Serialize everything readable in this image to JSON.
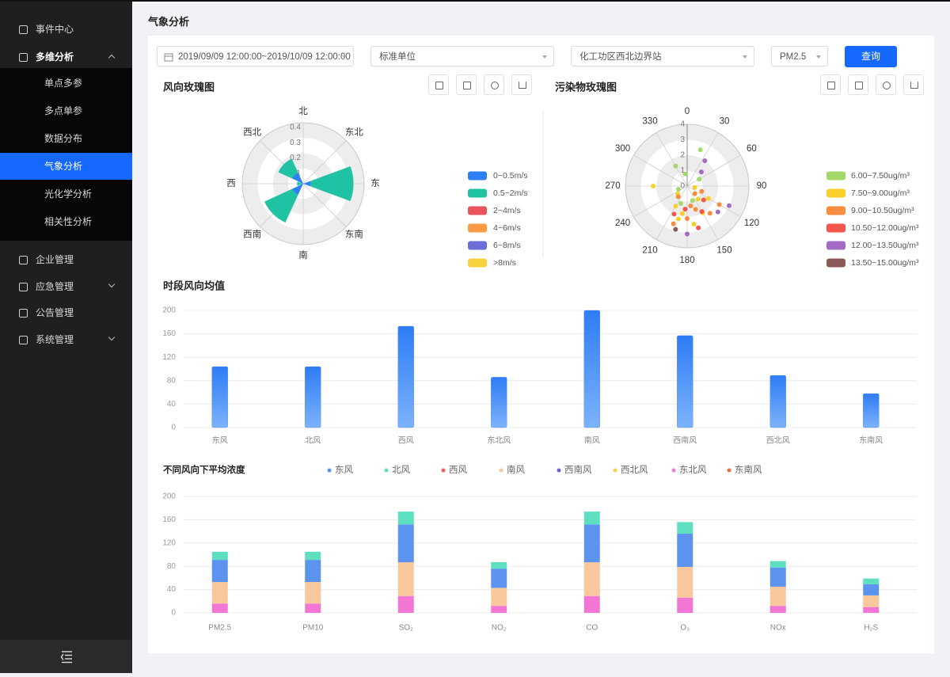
{
  "sidebar": {
    "items": [
      {
        "label": "事件中心"
      },
      {
        "label": "多维分析",
        "children": [
          "单点多参",
          "多点单参",
          "数据分布",
          "气象分析",
          "光化学分析",
          "相关性分析"
        ]
      },
      {
        "label": "企业管理"
      },
      {
        "label": "应急管理"
      },
      {
        "label": "公告管理"
      },
      {
        "label": "系统管理"
      }
    ]
  },
  "header": {
    "title": "气象分析"
  },
  "filters": {
    "date_range": "2019/09/09 12:00:00~2019/10/09 12:00:00",
    "unit": "标准单位",
    "station": "化工功区西北边界站",
    "pollutant": "PM2.5",
    "query_button": "查询"
  },
  "wind_rose": {
    "type": "polar-bar",
    "title": "风向玫瑰图",
    "directions": [
      "北",
      "东北",
      "东",
      "东南",
      "南",
      "西南",
      "西",
      "西北"
    ],
    "rlim": [
      0,
      0.4
    ],
    "rticks": [
      0.1,
      0.2,
      0.3,
      0.4
    ],
    "series": [
      {
        "name": "0~0.5m/s",
        "color": "#2f7ff5",
        "values": [
          0,
          0,
          0.05,
          0,
          0,
          0.08,
          0.01,
          0.08
        ]
      },
      {
        "name": "0.5~2m/s",
        "color": "#1fc3a3",
        "values": [
          0,
          0,
          0.28,
          0,
          0,
          0.2,
          0.03,
          0.1
        ]
      },
      {
        "name": "2~4m/s",
        "color": "#e9545e",
        "values": [
          0,
          0,
          0,
          0,
          0,
          0,
          0,
          0
        ]
      },
      {
        "name": "4~6m/s",
        "color": "#fa9a45",
        "values": [
          0,
          0,
          0,
          0,
          0,
          0,
          0,
          0
        ]
      },
      {
        "name": "6~8m/s",
        "color": "#6c6dd6",
        "values": [
          0,
          0,
          0,
          0,
          0,
          0,
          0,
          0
        ]
      },
      {
        "name": ">8m/s",
        "color": "#f7d23e",
        "values": [
          0,
          0,
          0,
          0,
          0,
          0,
          0,
          0
        ]
      }
    ]
  },
  "pollutant_rose": {
    "type": "polar-scatter",
    "title": "污染物玫瑰图",
    "angle_ticks": [
      0,
      30,
      60,
      90,
      120,
      150,
      180,
      210,
      240,
      270,
      300,
      330
    ],
    "rlim": [
      0,
      4
    ],
    "rticks": [
      0,
      1,
      2,
      3,
      4
    ],
    "series": [
      {
        "name": "6.00~7.50ug/m³",
        "color": "#a5d86b",
        "angles": [
          330,
          20,
          350,
          200,
          250,
          160,
          60
        ],
        "values": [
          1.5,
          2.5,
          0.8,
          1.2,
          0.6,
          1.0,
          0.9
        ]
      },
      {
        "name": "7.50~9.00ug/m³",
        "color": "#f9cf2a",
        "angles": [
          100,
          140,
          190,
          210,
          170,
          120,
          270,
          230,
          150,
          195
        ],
        "values": [
          0.5,
          1.1,
          1.8,
          1.5,
          2.5,
          1.6,
          2.2,
          0.8,
          2.0,
          2.2
        ]
      },
      {
        "name": "9.00~10.50ug/m³",
        "color": "#f98d3d",
        "angles": [
          160,
          140,
          180,
          200,
          120,
          110,
          220,
          170,
          135
        ],
        "values": [
          1.6,
          2.3,
          2.1,
          2.6,
          2.4,
          1.0,
          0.9,
          1.3,
          0.7
        ]
      },
      {
        "name": "10.50~12.00ug/m³",
        "color": "#f5574e",
        "angles": [
          150,
          185,
          205,
          165,
          130
        ],
        "values": [
          1.9,
          1.5,
          2.0,
          2.8,
          1.4
        ]
      },
      {
        "name": "12.00~13.50ug/m³",
        "color": "#a26cc4",
        "angles": [
          35,
          130,
          45,
          180,
          115
        ],
        "values": [
          2.0,
          2.6,
          1.3,
          3.1,
          3.0
        ]
      },
      {
        "name": "13.50~15.00ug/m³",
        "color": "#8c5a5a",
        "angles": [
          195
        ],
        "values": [
          2.9
        ]
      }
    ]
  },
  "period_chart": {
    "type": "bar",
    "title": "时段风向均值",
    "categories": [
      "东风",
      "北风",
      "西风",
      "东北风",
      "南风",
      "西南风",
      "西北风",
      "东南风"
    ],
    "values": [
      104,
      104,
      173,
      86,
      200,
      157,
      89,
      58
    ],
    "color": "#2e7cf6",
    "ylim": [
      0,
      200
    ],
    "yticks": [
      0,
      40,
      80,
      120,
      160,
      200
    ],
    "grid": true
  },
  "concentration_chart": {
    "type": "stacked-bar",
    "title": "不同风向下平均浓度",
    "categories": [
      "PM2.5",
      "PM10",
      "SO₂",
      "NO₂",
      "CO",
      "O₃",
      "NOx",
      "H₂S"
    ],
    "ylim": [
      0,
      200
    ],
    "yticks": [
      0,
      40,
      80,
      120,
      160,
      200
    ],
    "grid": true,
    "series": [
      {
        "name": "东风",
        "color": "#5b93ee",
        "values": [
          38,
          38,
          65,
          33,
          65,
          57,
          33,
          19
        ]
      },
      {
        "name": "北风",
        "color": "#5ddfc0",
        "values": [
          14,
          14,
          22,
          11,
          22,
          20,
          11,
          10
        ]
      },
      {
        "name": "西风",
        "color": "#ee5f64",
        "values": [
          0,
          0,
          0,
          0,
          0,
          0,
          0,
          0
        ]
      },
      {
        "name": "南风",
        "color": "#f8c79c",
        "values": [
          37,
          37,
          58,
          31,
          58,
          53,
          33,
          20
        ]
      },
      {
        "name": "西南风",
        "color": "#6b62d0",
        "values": [
          0,
          0,
          0,
          0,
          0,
          0,
          0,
          0
        ]
      },
      {
        "name": "西北风",
        "color": "#f9d44a",
        "values": [
          0,
          0,
          0,
          0,
          0,
          0,
          0,
          0
        ]
      },
      {
        "name": "东北风",
        "color": "#f277d4",
        "values": [
          16,
          16,
          29,
          12,
          29,
          26,
          12,
          10
        ]
      },
      {
        "name": "东南风",
        "color": "#f26b3a",
        "values": [
          0,
          0,
          0,
          0,
          0,
          0,
          0,
          0
        ]
      }
    ]
  }
}
